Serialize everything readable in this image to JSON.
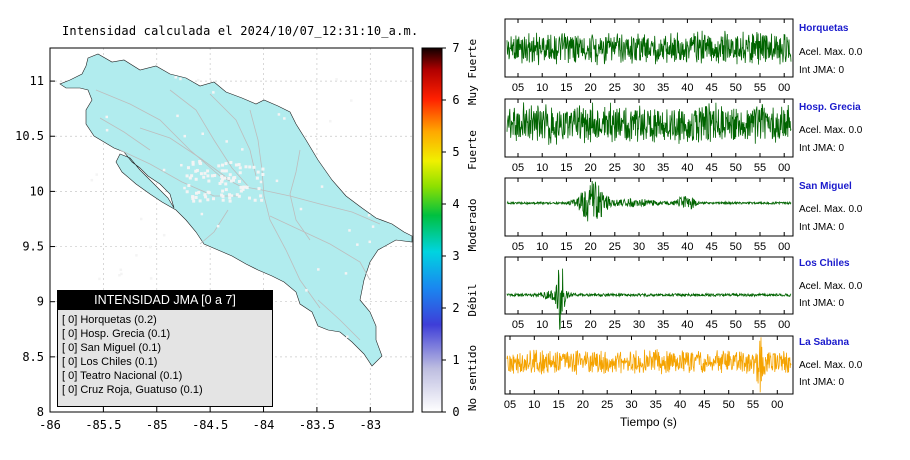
{
  "title": "Intensidad calculada el 2024/10/07_12:31:10_a.m.",
  "map": {
    "xticks": [
      "-86",
      "-85.5",
      "-85",
      "-84.5",
      "-84",
      "-83.5",
      "-83"
    ],
    "yticks": [
      "11",
      "10.5",
      "10",
      "9.5",
      "9",
      "8.5",
      "8"
    ],
    "land_color": "#b1ecee"
  },
  "colorbar": {
    "ticks": [
      "0",
      "1",
      "2",
      "3",
      "4",
      "5",
      "6",
      "7"
    ],
    "labels": [
      "No sentido",
      "Débil",
      "Moderado",
      "Fuerte",
      "Muy Fuerte"
    ]
  },
  "legend": {
    "header": "INTENSIDAD JMA [0 a 7]",
    "items": [
      "[ 0]  Horquetas (0.2)",
      "[ 0]  Hosp. Grecia (0.1)",
      "[ 0]  San Miguel (0.1)",
      "[ 0]  Los Chiles (0.1)",
      "[ 0]  Teatro Nacional (0.1)",
      "[ 0]  Cruz Roja, Guatuso (0.1)"
    ]
  },
  "stations": [
    {
      "name": "Horquetas",
      "acel": "Acel. Max. 0.0",
      "jma": "Int JMA: 0",
      "color": "#006400"
    },
    {
      "name": "Hosp. Grecia",
      "acel": "Acel. Max. 0.0",
      "jma": "Int JMA: 0",
      "color": "#006400"
    },
    {
      "name": "San Miguel",
      "acel": "Acel. Max. 0.0",
      "jma": "Int JMA: 0",
      "color": "#006400"
    },
    {
      "name": "Los Chiles",
      "acel": "Acel. Max. 0.0",
      "jma": "Int JMA: 0",
      "color": "#006400"
    },
    {
      "name": "La Sabana",
      "acel": "Acel. Max. 0.0",
      "jma": "Int JMA: 0",
      "color": "#f5a300"
    }
  ],
  "time_ticks": [
    "05",
    "10",
    "15",
    "20",
    "25",
    "30",
    "35",
    "40",
    "45",
    "50",
    "55",
    "00"
  ],
  "time_ticks_bottom": [
    "05",
    "10",
    "15",
    "20",
    "25",
    "30",
    "35",
    "40",
    "45",
    "50",
    "55",
    "00"
  ],
  "xlabel": "Tiempo (s)",
  "chart_data": [
    {
      "type": "scatter",
      "title": "Intensidad calculada el 2024/10/07_12:31:10_a.m.",
      "xlim": [
        -86,
        -82.6
      ],
      "ylim": [
        8,
        11.3
      ],
      "xticks": [
        -86,
        -85.5,
        -85,
        -84.5,
        -84,
        -83.5,
        -83
      ],
      "yticks": [
        8,
        8.5,
        9,
        9.5,
        10,
        10.5,
        11
      ],
      "legend_title": "INTENSIDAD JMA [0 a 7]",
      "stations": [
        {
          "name": "Horquetas",
          "jma": 0,
          "value": 0.2
        },
        {
          "name": "Hosp. Grecia",
          "jma": 0,
          "value": 0.1
        },
        {
          "name": "San Miguel",
          "jma": 0,
          "value": 0.1
        },
        {
          "name": "Los Chiles",
          "jma": 0,
          "value": 0.1
        },
        {
          "name": "Teatro Nacional",
          "jma": 0,
          "value": 0.1
        },
        {
          "name": "Cruz Roja, Guatuso",
          "jma": 0,
          "value": 0.1
        }
      ],
      "colorbar_range": [
        0,
        7
      ]
    },
    {
      "type": "line",
      "xlabel": "Tiempo (s)",
      "series": [
        {
          "name": "Horquetas",
          "pattern": "continuous"
        },
        {
          "name": "Hosp. Grecia",
          "pattern": "continuous"
        },
        {
          "name": "San Miguel",
          "pattern": "burst-at-20"
        },
        {
          "name": "Los Chiles",
          "pattern": "spike-at-15"
        },
        {
          "name": "La Sabana",
          "pattern": "continuous-spike-at-55"
        }
      ]
    }
  ]
}
